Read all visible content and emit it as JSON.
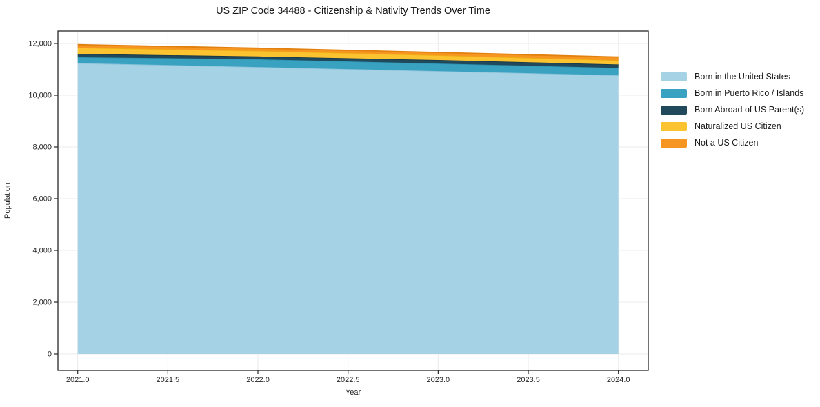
{
  "title": "US ZIP Code 34488 - Citizenship & Nativity Trends Over Time",
  "chart_data": {
    "type": "area",
    "stacked": true,
    "title": "US ZIP Code 34488 - Citizenship & Nativity Trends Over Time",
    "xlabel": "Year",
    "ylabel": "Population",
    "x": [
      2021,
      2022,
      2023,
      2024
    ],
    "series": [
      {
        "name": "Born in the United States",
        "color": "#A5D2E5",
        "edge_color": "#8CC3DA",
        "values": [
          11240,
          11090,
          10930,
          10770
        ]
      },
      {
        "name": "Born in Puerto Rico / Islands",
        "color": "#3AA2C1",
        "edge_color": "#2E93B2",
        "values": [
          230,
          300,
          295,
          285
        ]
      },
      {
        "name": "Born Abroad of US Parent(s)",
        "color": "#20495C",
        "edge_color": "#17394A",
        "values": [
          130,
          110,
          135,
          135
        ]
      },
      {
        "name": "Naturalized US Citizen",
        "color": "#FCC331",
        "edge_color": "#EEAE12",
        "values": [
          240,
          215,
          185,
          160
        ]
      },
      {
        "name": "Not a US Citizen",
        "color": "#F79523",
        "edge_color": "#E2800D",
        "values": [
          115,
          105,
          105,
          125
        ]
      }
    ],
    "x_tick_values": [
      2021.0,
      2021.5,
      2022.0,
      2022.5,
      2023.0,
      2023.5,
      2024.0
    ],
    "x_tick_labels": [
      "2021.0",
      "2021.5",
      "2022.0",
      "2022.5",
      "2023.0",
      "2023.5",
      "2024.0"
    ],
    "y_tick_values": [
      0,
      2000,
      4000,
      6000,
      8000,
      10000,
      12000
    ],
    "y_tick_labels": [
      "0",
      "2,000",
      "4,000",
      "6,000",
      "8,000",
      "10,000",
      "12,000"
    ],
    "xlim": [
      2021,
      2024
    ],
    "ylim": [
      0,
      12000
    ],
    "grid": true,
    "legend_position": "right",
    "grid_color": "#EBEBEB",
    "spine_color": "#262626",
    "text_color": "#262626"
  }
}
